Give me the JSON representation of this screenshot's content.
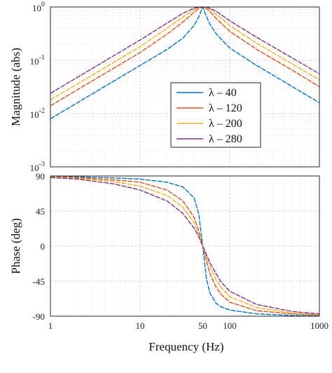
{
  "chart_data": [
    {
      "type": "line",
      "xlabel": "",
      "ylabel": "Magnitude (abs)",
      "x_scale": "log",
      "y_scale": "log",
      "xlim": [
        1,
        1000
      ],
      "ylim": [
        0.001,
        1
      ],
      "y_ticks": [
        {
          "value": 0.001,
          "base": "10",
          "exp": "-3"
        },
        {
          "value": 0.01,
          "base": "10",
          "exp": "-2"
        },
        {
          "value": 0.1,
          "base": "10",
          "exp": "-1"
        },
        {
          "value": 1,
          "base": "10",
          "exp": "0"
        }
      ],
      "grid": true,
      "legend_position": "center-right",
      "series": [
        {
          "name": "λ – 40",
          "color": "#0072BD",
          "x": [
            1,
            2,
            5,
            10,
            20,
            30,
            40,
            45,
            50,
            55,
            60,
            70,
            80,
            100,
            200,
            500,
            1000
          ],
          "y": [
            0.008,
            0.016,
            0.04,
            0.08,
            0.16,
            0.26,
            0.45,
            0.64,
            1.0,
            0.66,
            0.48,
            0.32,
            0.25,
            0.17,
            0.08,
            0.032,
            0.016
          ]
        },
        {
          "name": "λ – 120",
          "color": "#D95319",
          "x": [
            1,
            2,
            5,
            10,
            20,
            30,
            40,
            45,
            50,
            55,
            60,
            70,
            80,
            100,
            200,
            500,
            1000
          ],
          "y": [
            0.014,
            0.028,
            0.07,
            0.14,
            0.31,
            0.52,
            0.8,
            0.93,
            1.0,
            0.93,
            0.82,
            0.62,
            0.5,
            0.35,
            0.16,
            0.065,
            0.032
          ]
        },
        {
          "name": "λ – 200",
          "color": "#EDB120",
          "x": [
            1,
            2,
            5,
            10,
            20,
            30,
            40,
            45,
            50,
            55,
            60,
            70,
            80,
            100,
            200,
            500,
            1000
          ],
          "y": [
            0.018,
            0.036,
            0.09,
            0.18,
            0.4,
            0.65,
            0.9,
            0.97,
            1.0,
            0.97,
            0.9,
            0.74,
            0.62,
            0.45,
            0.21,
            0.085,
            0.043
          ]
        },
        {
          "name": "λ – 280",
          "color": "#7E2F8E",
          "x": [
            1,
            2,
            5,
            10,
            20,
            30,
            40,
            45,
            50,
            55,
            60,
            70,
            80,
            100,
            200,
            500,
            1000
          ],
          "y": [
            0.024,
            0.048,
            0.12,
            0.24,
            0.5,
            0.76,
            0.95,
            0.99,
            1.0,
            0.99,
            0.95,
            0.84,
            0.72,
            0.55,
            0.27,
            0.11,
            0.056
          ]
        }
      ]
    },
    {
      "type": "line",
      "xlabel": "Frequency (Hz)",
      "ylabel": "Phase (deg)",
      "x_scale": "log",
      "y_scale": "linear",
      "xlim": [
        1,
        1000
      ],
      "ylim": [
        -90,
        90
      ],
      "x_ticks": [
        {
          "value": 1,
          "label": "1"
        },
        {
          "value": 10,
          "label": "10"
        },
        {
          "value": 50,
          "label": "50"
        },
        {
          "value": 100,
          "label": "100"
        },
        {
          "value": 1000,
          "label": "1000"
        }
      ],
      "y_ticks": [
        {
          "value": 90,
          "label": "90"
        },
        {
          "value": 45,
          "label": "45"
        },
        {
          "value": 0,
          "label": "0"
        },
        {
          "value": -45,
          "label": "-45"
        },
        {
          "value": -90,
          "label": "-90"
        }
      ],
      "grid": true,
      "series": [
        {
          "name": "λ – 40",
          "color": "#0072BD",
          "x": [
            1,
            2,
            5,
            10,
            20,
            30,
            40,
            45,
            50,
            55,
            60,
            70,
            80,
            100,
            200,
            500,
            1000
          ],
          "y": [
            89.5,
            89,
            87.5,
            86,
            82,
            76,
            62,
            42,
            0,
            -42,
            -60,
            -73,
            -78,
            -82,
            -87,
            -89,
            -89.5
          ]
        },
        {
          "name": "λ – 120",
          "color": "#D95319",
          "x": [
            1,
            2,
            5,
            10,
            20,
            30,
            40,
            45,
            50,
            55,
            60,
            70,
            80,
            100,
            200,
            500,
            1000
          ],
          "y": [
            89,
            88,
            85,
            82,
            72,
            58,
            37,
            20,
            0,
            -19,
            -35,
            -52,
            -62,
            -72,
            -83,
            -87,
            -88.5
          ]
        },
        {
          "name": "λ – 200",
          "color": "#EDB120",
          "x": [
            1,
            2,
            5,
            10,
            20,
            30,
            40,
            45,
            50,
            55,
            60,
            70,
            80,
            100,
            200,
            500,
            1000
          ],
          "y": [
            88.5,
            87,
            83,
            77,
            65,
            50,
            30,
            15,
            0,
            -14,
            -26,
            -42,
            -53,
            -65,
            -79,
            -86,
            -88
          ]
        },
        {
          "name": "λ – 280",
          "color": "#7E2F8E",
          "x": [
            1,
            2,
            5,
            10,
            20,
            30,
            40,
            45,
            50,
            55,
            60,
            70,
            80,
            100,
            200,
            500,
            1000
          ],
          "y": [
            88,
            86,
            80,
            72,
            58,
            42,
            23,
            12,
            0,
            -11,
            -21,
            -35,
            -46,
            -58,
            -75,
            -84,
            -87
          ]
        }
      ]
    }
  ]
}
